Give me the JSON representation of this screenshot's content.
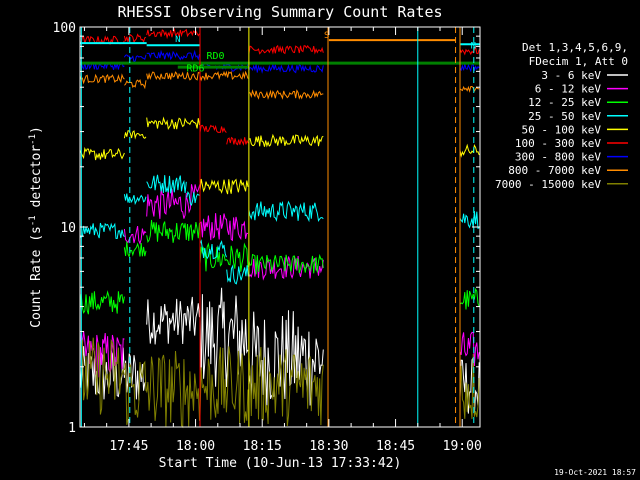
{
  "chart_data": {
    "type": "line",
    "title": "RHESSI Observing Summary Count Rates",
    "xlabel": "Start Time (10-Jun-13 17:33:42)",
    "ylabel_main": "Count Rate (s",
    "ylabel_sup": "-1",
    "ylabel_tail": " detector",
    "ylabel_close": ")",
    "y_scale": "log",
    "ylim": [
      1,
      100
    ],
    "xlim_minutes": [
      34,
      124
    ],
    "y_ticks": [
      {
        "v": 1,
        "label": "1"
      },
      {
        "v": 10,
        "label": "10"
      },
      {
        "v": 100,
        "label": "100"
      }
    ],
    "x_ticks": [
      {
        "m": 45,
        "label": "17:45"
      },
      {
        "m": 60,
        "label": "18:00"
      },
      {
        "m": 75,
        "label": "18:15"
      },
      {
        "m": 90,
        "label": "18:30"
      },
      {
        "m": 105,
        "label": "18:45"
      },
      {
        "m": 120,
        "label": "19:00"
      }
    ],
    "timestamp": "19-Oct-2021 18:57",
    "legend_position": "right",
    "legend_header": [
      "Det 1,3,4,5,6,9,",
      "FDecim 1, Att 0"
    ],
    "attenuator_labels": [
      {
        "text": "RD0",
        "m": 64.5,
        "v": 69
      },
      {
        "text": "RD6",
        "m": 60,
        "v": 60
      }
    ],
    "flag_labels": [
      {
        "text": "N",
        "m": 56,
        "v": 84,
        "color": "#00ffff"
      },
      {
        "text": "S",
        "m": 89.5,
        "v": 88,
        "color": "#ff8c00"
      },
      {
        "text": "N",
        "m": 122.5,
        "v": 78,
        "color": "#00ffff"
      }
    ],
    "series": [
      {
        "name": "3 - 6 keV",
        "color": "#ffffff",
        "seg": [
          [
            34,
            49,
            1.8,
            0.15
          ],
          [
            49,
            61,
            3.4,
            0.12
          ],
          [
            61,
            72,
            2.8,
            0.25
          ],
          [
            72,
            89,
            2.2,
            0.25
          ],
          [
            119.5,
            124,
            1.6,
            0.15
          ]
        ]
      },
      {
        "name": "6 - 12 keV",
        "color": "#ff00ff",
        "seg": [
          [
            34,
            44,
            2.3,
            0.12
          ],
          [
            44,
            49,
            9.2,
            0.05
          ],
          [
            49,
            58,
            13,
            0.08
          ],
          [
            58,
            61,
            14,
            0.07
          ],
          [
            61,
            72,
            10,
            0.07
          ],
          [
            72,
            89,
            6.3,
            0.06
          ],
          [
            119.5,
            124,
            2.4,
            0.1
          ]
        ]
      },
      {
        "name": "12 - 25 keV",
        "color": "#00ff00",
        "seg": [
          [
            34,
            44,
            4.2,
            0.06
          ],
          [
            44,
            49,
            7.8,
            0.04
          ],
          [
            49,
            61,
            9.5,
            0.06
          ],
          [
            61,
            72,
            7,
            0.07
          ],
          [
            72,
            89,
            6.5,
            0.05
          ],
          [
            119.5,
            124,
            4.3,
            0.06
          ]
        ]
      },
      {
        "name": "25 - 50 keV",
        "color": "#00ffff",
        "seg": [
          [
            34,
            44,
            9.6,
            0.04
          ],
          [
            44,
            49,
            14,
            0.03
          ],
          [
            49,
            58,
            16.5,
            0.05
          ],
          [
            58,
            61,
            14,
            0.04
          ],
          [
            61,
            67,
            7.8,
            0.05
          ],
          [
            67,
            72,
            5.8,
            0.05
          ],
          [
            72,
            89,
            12,
            0.05
          ],
          [
            119.5,
            124,
            11,
            0.05
          ]
        ]
      },
      {
        "name": "50 - 100 keV",
        "color": "#ffff00",
        "seg": [
          [
            34,
            44,
            23,
            0.03
          ],
          [
            44,
            49,
            29,
            0.02
          ],
          [
            49,
            61,
            33,
            0.03
          ],
          [
            61,
            72,
            16,
            0.04
          ],
          [
            72,
            89,
            27,
            0.03
          ],
          [
            119.5,
            124,
            24,
            0.03
          ]
        ]
      },
      {
        "name": "100 - 300 keV",
        "color": "#ff0000",
        "seg": [
          [
            34,
            44,
            86,
            0.02
          ],
          [
            44,
            49,
            88,
            0.02
          ],
          [
            49,
            61,
            93,
            0.02
          ],
          [
            61,
            67,
            31,
            0.02
          ],
          [
            67,
            72,
            27,
            0.02
          ],
          [
            72,
            89,
            77,
            0.02
          ],
          [
            119.5,
            124,
            76,
            0.02
          ]
        ]
      },
      {
        "name": "300 - 800 keV",
        "color": "#0000ff",
        "seg": [
          [
            34,
            44,
            64,
            0.02
          ],
          [
            44,
            49,
            70,
            0.02
          ],
          [
            49,
            61,
            72,
            0.02
          ],
          [
            61,
            72,
            63,
            0.02
          ],
          [
            72,
            89,
            62,
            0.02
          ],
          [
            119.5,
            124,
            63,
            0.02
          ]
        ]
      },
      {
        "name": "800 - 7000 keV",
        "color": "#ff8c00",
        "seg": [
          [
            34,
            44,
            55,
            0.02
          ],
          [
            44,
            49,
            52,
            0.02
          ],
          [
            49,
            61,
            57,
            0.02
          ],
          [
            61,
            72,
            57,
            0.02
          ],
          [
            72,
            89,
            46,
            0.02
          ],
          [
            119.5,
            124,
            50,
            0.02
          ]
        ]
      },
      {
        "name": "7000 - 15000 keV",
        "color": "#808000",
        "seg": [
          [
            34,
            44,
            1.8,
            0.2
          ],
          [
            44,
            49,
            1.55,
            0.2
          ],
          [
            49,
            61,
            1.55,
            0.2
          ],
          [
            61,
            72,
            1.6,
            0.2
          ],
          [
            72,
            89,
            1.6,
            0.2
          ],
          [
            119.5,
            124,
            1.6,
            0.2
          ]
        ]
      }
    ],
    "flag_intervals": [
      {
        "color": "#00ffff",
        "v": 83,
        "from": 34,
        "to": 49
      },
      {
        "color": "#00ffff",
        "v": 81,
        "from": 49,
        "to": 61
      },
      {
        "color": "#00ffff",
        "v": 82,
        "from": 119.5,
        "to": 124
      },
      {
        "color": "#ff8c00",
        "v": 86,
        "from": 90,
        "to": 118.5
      }
    ],
    "vertical_lines": [
      {
        "m": 34.3,
        "color": "#00ffff",
        "dashed": false
      },
      {
        "m": 45.2,
        "color": "#00ffff",
        "dashed": true
      },
      {
        "m": 61,
        "color": "#ff0000",
        "dashed": false
      },
      {
        "m": 72,
        "color": "#ffff00",
        "dashed": false
      },
      {
        "m": 89.8,
        "color": "#ff8c00",
        "dashed": false
      },
      {
        "m": 110,
        "color": "#00ffff",
        "dashed": false
      },
      {
        "m": 118.5,
        "color": "#ff8c00",
        "dashed": true
      },
      {
        "m": 119.5,
        "color": "#ff8c00",
        "dashed": false
      },
      {
        "m": 122.6,
        "color": "#00ffff",
        "dashed": true
      }
    ],
    "level_lines": [
      {
        "name": "RD0",
        "color": "#008000",
        "v": 66,
        "from": 34,
        "to": 124
      },
      {
        "name": "RD6",
        "color": "#008000",
        "v": 63,
        "from": 56,
        "to": 72
      }
    ]
  }
}
